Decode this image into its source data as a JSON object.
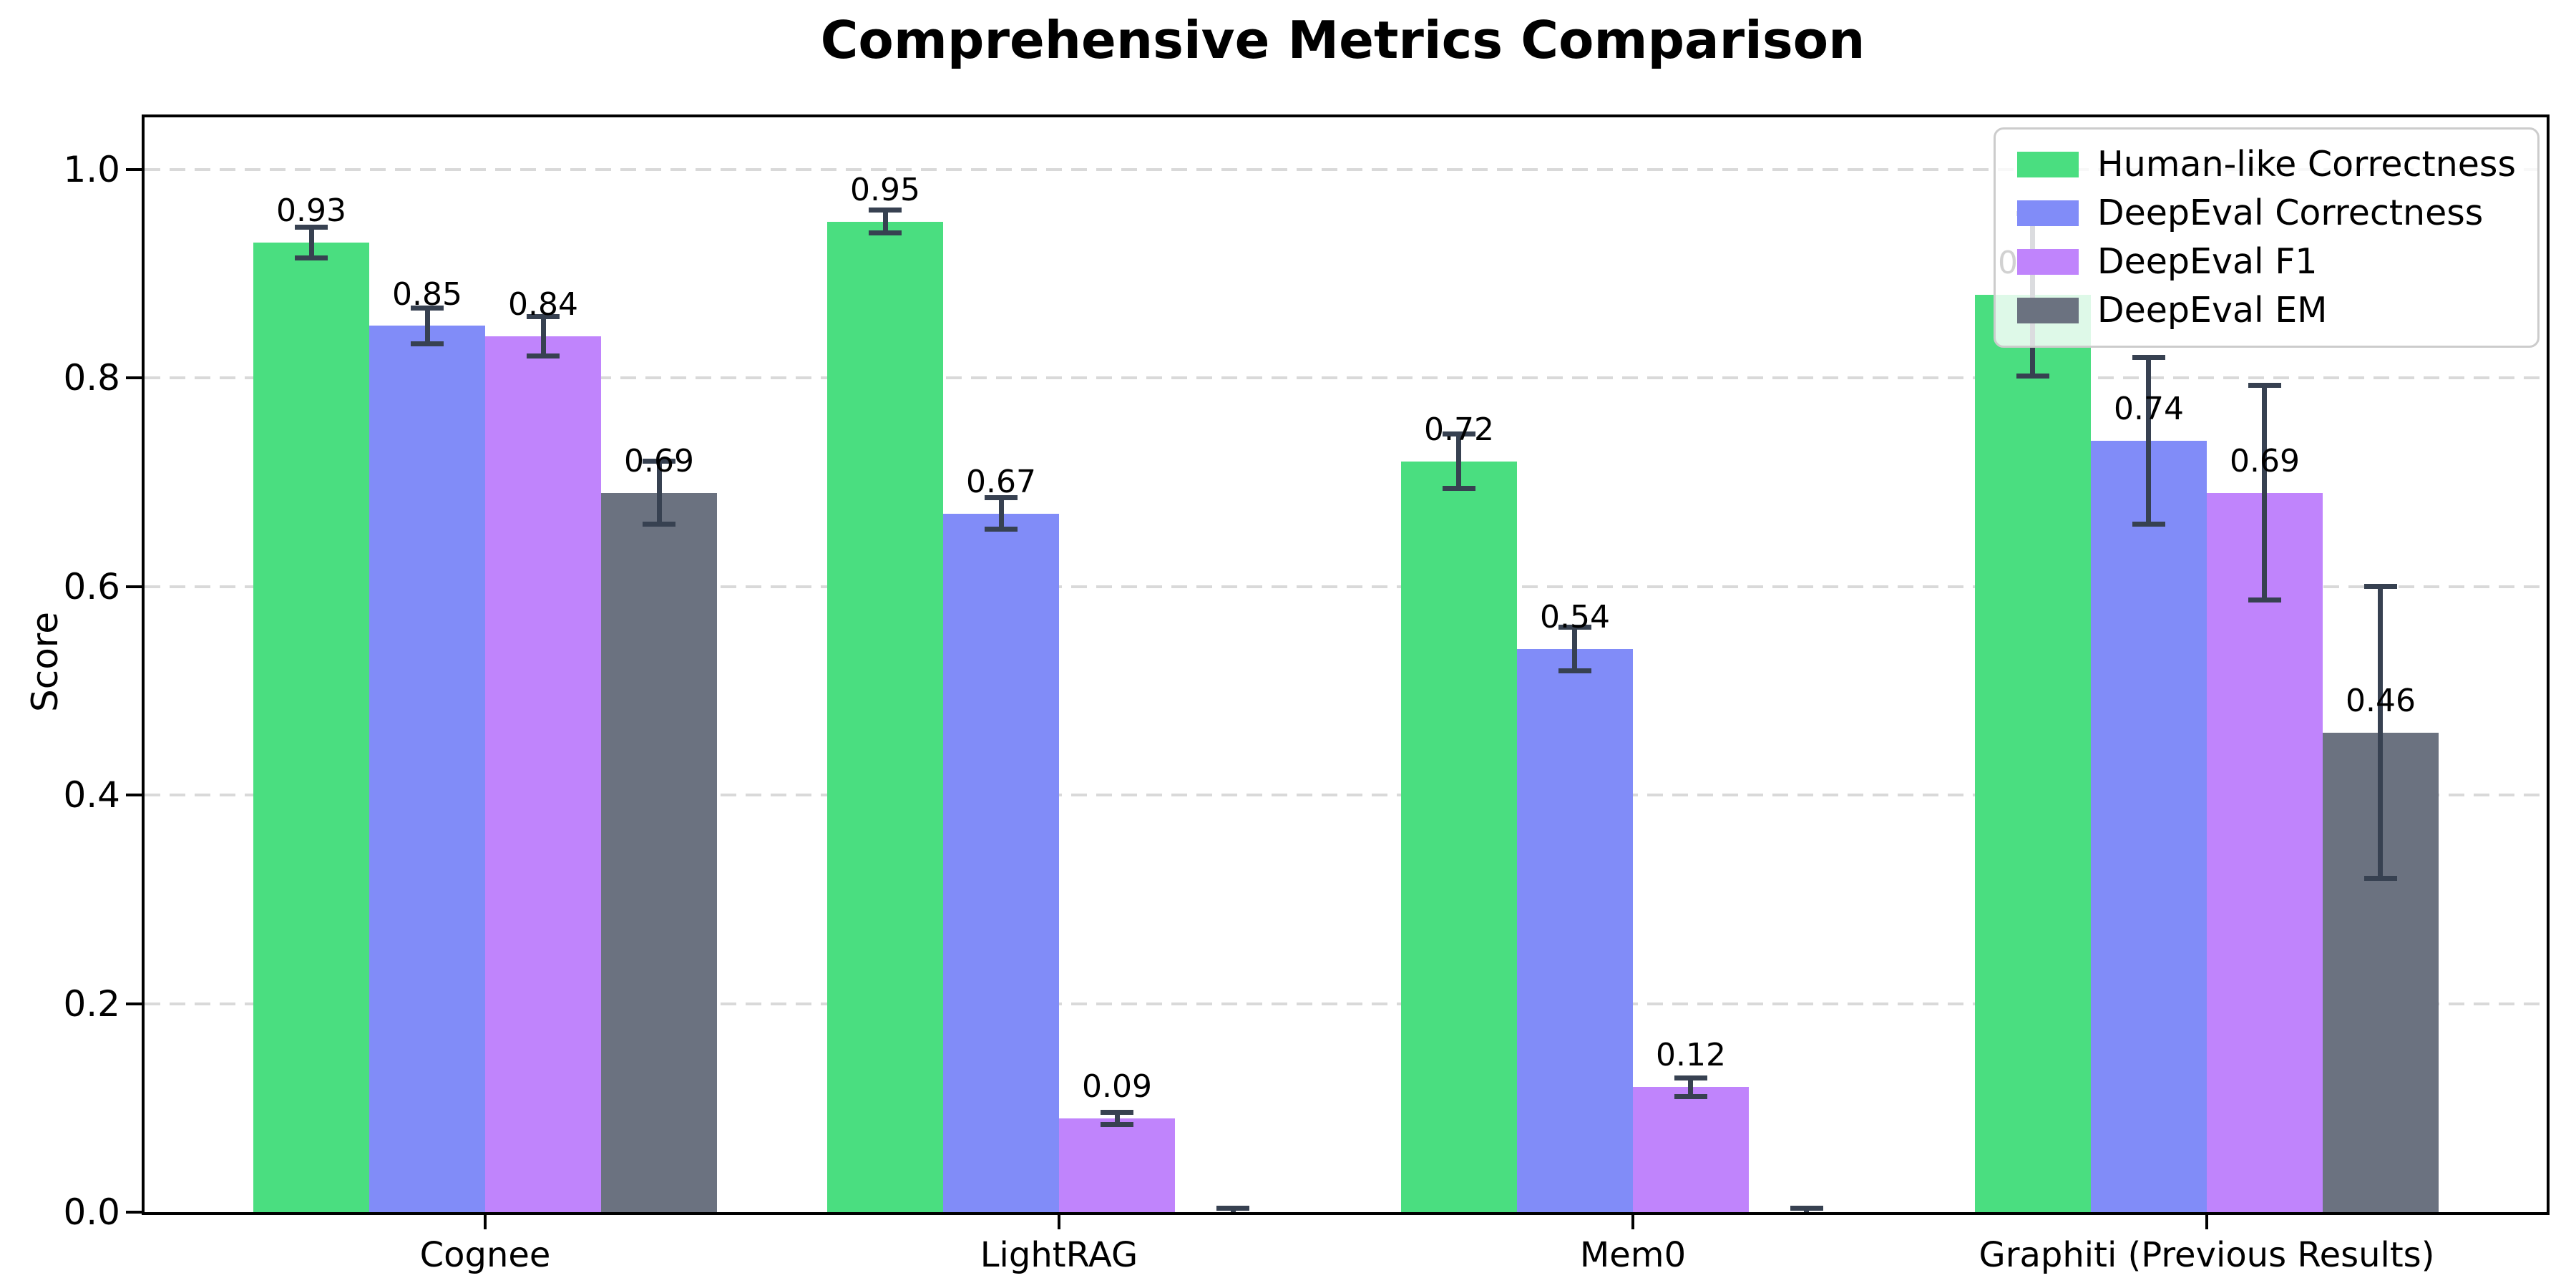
{
  "chart_data": {
    "type": "bar",
    "title": "Comprehensive Metrics Comparison",
    "ylabel": "Score",
    "xlabel": "",
    "categories": [
      "Cognee",
      "LightRAG",
      "Mem0",
      "Graphiti (Previous Results)"
    ],
    "series": [
      {
        "name": "Human-like Correctness",
        "color": "#4ade80",
        "values": [
          0.93,
          0.95,
          0.72,
          0.88
        ],
        "errors": [
          0.015,
          0.011,
          0.026,
          0.078
        ],
        "labels": [
          "0.93",
          "0.95",
          "0.72",
          "0.88"
        ]
      },
      {
        "name": "DeepEval Correctness",
        "color": "#818cf8",
        "values": [
          0.85,
          0.67,
          0.54,
          0.74
        ],
        "errors": [
          0.017,
          0.015,
          0.021,
          0.08
        ],
        "labels": [
          "0.85",
          "0.67",
          "0.54",
          "0.74"
        ]
      },
      {
        "name": "DeepEval F1",
        "color": "#c084fc",
        "values": [
          0.84,
          0.09,
          0.12,
          0.69
        ],
        "errors": [
          0.019,
          0.006,
          0.009,
          0.103
        ],
        "labels": [
          "0.84",
          "0.09",
          "0.12",
          "0.69"
        ]
      },
      {
        "name": "DeepEval EM",
        "color": "#6b7280",
        "values": [
          0.69,
          0.0,
          0.0,
          0.46
        ],
        "errors": [
          0.03,
          0.004,
          0.004,
          0.14
        ],
        "labels": [
          "0.69",
          null,
          null,
          "0.46"
        ]
      }
    ],
    "yticks": [
      "0.0",
      "0.2",
      "0.4",
      "0.6",
      "0.8",
      "1.0"
    ],
    "ylim": [
      0,
      1.05
    ],
    "grid": "horizontal-dashed",
    "grid_color": "#d9d9d9",
    "error_bar_color": "#374151",
    "legend_position": "upper right"
  }
}
